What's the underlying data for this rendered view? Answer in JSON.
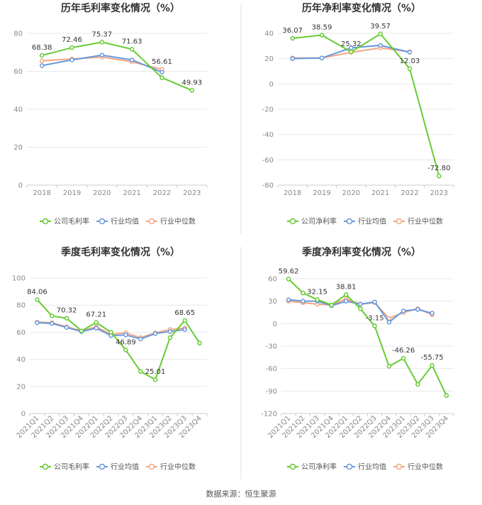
{
  "source_text": "数据来源：恒生聚源",
  "colors": {
    "company": "#66cc33",
    "industry_avg": "#6699dd",
    "industry_median": "#f4a582",
    "grid": "#e8e8e8",
    "axis": "#cccccc",
    "divider": "#e0e0e0"
  },
  "chart_data": [
    {
      "type": "line",
      "title": "历年毛利率变化情况（%）",
      "categories": [
        "2018",
        "2019",
        "2020",
        "2021",
        "2022",
        "2023"
      ],
      "ylim": [
        0,
        80
      ],
      "yticks": [
        0,
        20,
        40,
        60,
        80
      ],
      "grid": true,
      "legend_position": "bottom",
      "series": [
        {
          "name": "公司毛利率",
          "values": [
            68.38,
            72.46,
            75.37,
            71.63,
            56.61,
            49.93
          ],
          "labels": [
            "68.38",
            "72.46",
            "75.37",
            "71.63",
            "",
            "49.93"
          ]
        },
        {
          "name": "行业均值",
          "values": [
            63.0,
            66.0,
            68.5,
            66.0,
            59.5,
            null
          ]
        },
        {
          "name": "行业中位数",
          "values": [
            65.5,
            66.5,
            67.5,
            65.0,
            61.0,
            null
          ],
          "labels": [
            "",
            "",
            "",
            "",
            "56.61",
            ""
          ]
        }
      ]
    },
    {
      "type": "line",
      "title": "历年净利率变化情况（%）",
      "categories": [
        "2018",
        "2019",
        "2020",
        "2021",
        "2022",
        "2023"
      ],
      "ylim": [
        -80,
        40
      ],
      "yticks": [
        -80,
        -60,
        -40,
        -20,
        0,
        20,
        40
      ],
      "grid": true,
      "legend_position": "bottom",
      "series": [
        {
          "name": "公司净利率",
          "values": [
            36.07,
            38.59,
            25.32,
            39.57,
            12.03,
            -72.8
          ],
          "labels": [
            "36.07",
            "38.59",
            "25.32",
            "39.57",
            "12.03",
            "-72.80"
          ]
        },
        {
          "name": "行业均值",
          "values": [
            20.0,
            20.5,
            28.5,
            30.5,
            25.0,
            null
          ]
        },
        {
          "name": "行业中位数",
          "values": [
            20.5,
            20.5,
            25.0,
            28.5,
            25.5,
            null
          ]
        }
      ]
    },
    {
      "type": "line",
      "title": "季度毛利率变化情况（%）",
      "categories": [
        "2021Q1",
        "2021Q2",
        "2021Q3",
        "2021Q4",
        "2022Q1",
        "2022Q2",
        "2022Q3",
        "2022Q4",
        "2023Q1",
        "2023Q2",
        "2023Q3",
        "2023Q4"
      ],
      "ylim": [
        0,
        100
      ],
      "yticks": [
        0,
        20,
        40,
        60,
        80,
        100
      ],
      "grid": true,
      "legend_position": "bottom",
      "series": [
        {
          "name": "公司毛利率",
          "values": [
            84.06,
            72.0,
            70.32,
            61.0,
            67.21,
            60.0,
            46.89,
            31.0,
            25.01,
            56.0,
            68.65,
            52.0
          ],
          "labels": [
            "84.06",
            "",
            "70.32",
            "",
            "67.21",
            "",
            "46.89",
            "",
            "25.01",
            "",
            "68.65",
            ""
          ]
        },
        {
          "name": "行业均值",
          "values": [
            67.0,
            66.5,
            63.5,
            60.5,
            63.0,
            57.5,
            58.0,
            55.0,
            59.0,
            60.5,
            62.0,
            null
          ]
        },
        {
          "name": "行业中位数",
          "values": [
            67.5,
            67.0,
            64.0,
            61.0,
            64.0,
            58.5,
            59.5,
            56.0,
            59.5,
            62.0,
            63.0,
            null
          ]
        }
      ]
    },
    {
      "type": "line",
      "title": "季度净利率变化情况（%）",
      "categories": [
        "2021Q1",
        "2021Q2",
        "2021Q3",
        "2021Q4",
        "2022Q1",
        "2022Q2",
        "2022Q3",
        "2022Q4",
        "2023Q1",
        "2023Q2",
        "2023Q3",
        "2023Q4"
      ],
      "ylim": [
        -120,
        60
      ],
      "yticks": [
        -120,
        -90,
        -60,
        -30,
        0,
        30,
        60
      ],
      "grid": true,
      "legend_position": "bottom",
      "series": [
        {
          "name": "公司净利率",
          "values": [
            59.62,
            41.0,
            32.15,
            25.0,
            38.81,
            20.0,
            -3.15,
            -57.0,
            -46.26,
            -81.0,
            -55.75,
            -96.0
          ],
          "labels": [
            "59.62",
            "",
            "32.15",
            "",
            "38.81",
            "",
            "-3.15",
            "",
            "-46.26",
            "",
            "-55.75",
            ""
          ]
        },
        {
          "name": "行业均值",
          "values": [
            32.0,
            30.0,
            30.0,
            24.0,
            30.0,
            26.0,
            29.0,
            2.0,
            17.0,
            19.0,
            14.0,
            null
          ]
        },
        {
          "name": "行业中位数",
          "values": [
            30.0,
            28.0,
            26.0,
            25.0,
            33.0,
            26.0,
            28.0,
            7.0,
            15.0,
            20.0,
            12.0,
            null
          ]
        }
      ]
    }
  ]
}
